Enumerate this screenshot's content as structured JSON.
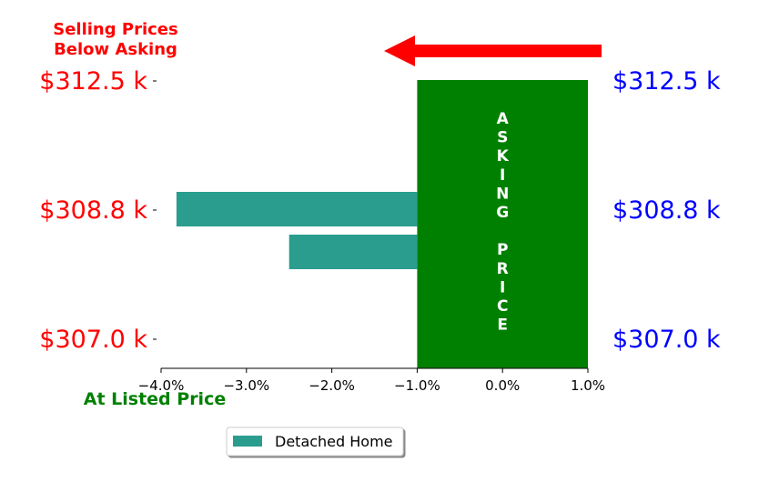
{
  "chart_data": {
    "type": "bar",
    "orientation": "horizontal",
    "x": {
      "ticks": [
        -4.0,
        -3.0,
        -2.0,
        -1.0,
        0.0,
        1.0
      ],
      "tick_labels": [
        "−4.0%",
        "−3.0%",
        "−2.0%",
        "−1.0%",
        "0.0%",
        "1.0%"
      ],
      "range": [
        -4.0,
        1.0
      ]
    },
    "y_left": {
      "tick_labels": [
        "$312.5 k",
        "$308.8 k",
        "$307.0 k"
      ],
      "color": "#ff0000"
    },
    "y_right": {
      "tick_labels": [
        "$312.5 k",
        "$308.8 k",
        "$307.0 k"
      ],
      "color": "#0000ff"
    },
    "series": [
      {
        "name": "Detached Home",
        "color": "#2a9d8f",
        "bars": [
          {
            "start": -3.82,
            "end": -1.0
          },
          {
            "start": -2.5,
            "end": -1.0
          }
        ]
      }
    ],
    "asking_price_band": {
      "x_from": -1.0,
      "x_to": 1.0,
      "color": "#008000",
      "label_lines": [
        "A",
        "S",
        "K",
        "I",
        "N",
        "G",
        "",
        "P",
        "R",
        "I",
        "C",
        "E"
      ]
    },
    "annotations": {
      "below_asking_line1": "Selling Prices",
      "below_asking_line2": "Below Asking",
      "below_asking_color": "#ff0000",
      "at_listed": "At Listed Price",
      "at_listed_color": "#008000",
      "arrow_color": "#ff0000"
    },
    "legend": {
      "position": "bottom-center",
      "entries": [
        "Detached Home"
      ]
    },
    "grid": false
  }
}
